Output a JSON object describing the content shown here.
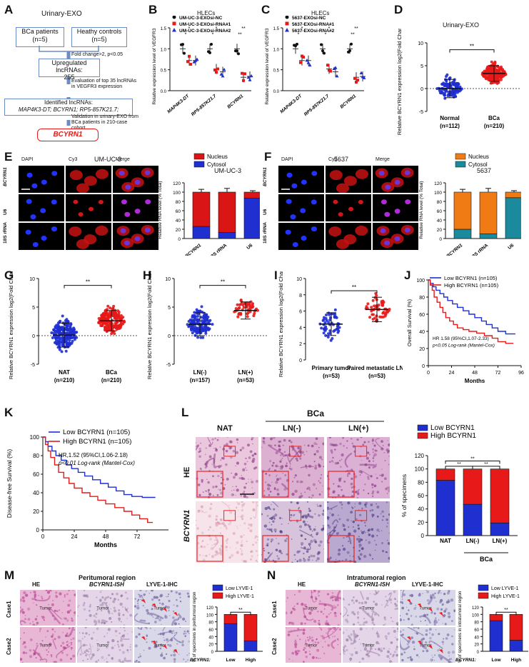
{
  "colors": {
    "blue": "#1f2fd0",
    "red": "#e81919",
    "teal": "#1b8a9c",
    "orange": "#f07a14",
    "nuc_red": "#d91515"
  },
  "panels": {
    "A": {
      "letter": "A",
      "title": "Urinary-EXO",
      "boxes": [
        "BCa patients (n=5)",
        "Heathy controls (n=5)"
      ],
      "step1": "Fold change>2, p<0.05",
      "step2a": "Upregulated lncRNAs:",
      "step2b": "255",
      "step3": "Evaluation of top 35 lncRNAs in VEGFR3 expression",
      "step4a": "Identified lncRNAs:",
      "step4b": "MAP4K3-DT; BCYRN1; RP5-857K21.7;",
      "step5": "Validation in urinary-EXO from BCa patients in 210-case cohort",
      "final": "BCYRN1"
    },
    "B": {
      "letter": "B",
      "title": "HLECs",
      "legend": [
        "UM-UC-3-EXOsi-NC",
        "UM-UC-3-EXOsi-RNA#1",
        "UM-UC-3-EXOsi-RNA#2"
      ],
      "ylabel": "Relative expression level of VEGFR3",
      "genes": [
        "MAP4K3-DT",
        "RP5-857K21.7",
        "BCYRN1"
      ]
    },
    "C": {
      "letter": "C",
      "title": "HLECs",
      "legend": [
        "5637-EXOsi-NC",
        "5637-EXOsi-RNA#1",
        "5637-EXOsi-RNA#2"
      ],
      "ylabel": "Relative expression level of VEGFR3",
      "genes": [
        "MAP4K3-DT",
        "RP5-857K21.7",
        "BCYRN1"
      ]
    },
    "D": {
      "letter": "D",
      "title": "Urinary-EXO",
      "ylabel": "Relative BCYRN1 expression log2(Fold Change)",
      "groups": [
        "Normal",
        "BCa"
      ],
      "ns": [
        "(n=112)",
        "(n=210)"
      ],
      "sig": "**"
    },
    "E": {
      "letter": "E",
      "title": "UM-UC-3",
      "micro_headers": [
        "DAPI",
        "Cy3",
        "Merge"
      ],
      "rows": [
        "BCYRN1",
        "U6",
        "18S rRNA"
      ],
      "chart_title": "UM-UC-3",
      "legend": [
        "Nucleus",
        "Cytosol"
      ],
      "ylabel": "Relative RNA level (% Total)",
      "categories": [
        "BCYRN1",
        "18S rRNA",
        "U6"
      ]
    },
    "F": {
      "letter": "F",
      "title": "5637",
      "micro_headers": [
        "DAPI",
        "Cy3",
        "Merge"
      ],
      "rows": [
        "BCYRN1",
        "U6",
        "18S rRNA"
      ],
      "chart_title": "5637",
      "legend": [
        "Nucleus",
        "Cytosol"
      ],
      "ylabel": "Relative RNA level (% Total)",
      "categories": [
        "BCYRN1",
        "18S rRNA",
        "U6"
      ]
    },
    "G": {
      "letter": "G",
      "ylabel": "Relative BCYRN1 expression log2(Fold Change)",
      "groups": [
        "NAT",
        "BCa"
      ],
      "ns": [
        "(n=210)",
        "(n=210)"
      ],
      "sig": "**"
    },
    "H": {
      "letter": "H",
      "ylabel": "Relative BCYRN1 expression log2(Fold Change)",
      "groups": [
        "LN(-)",
        "LN(+)"
      ],
      "ns": [
        "(n=157)",
        "(n=53)"
      ],
      "sig": "**"
    },
    "I": {
      "letter": "I",
      "ylabel": "Relative BCYRN1 expression log2(Fold Change)",
      "groups": [
        "Primary tumor",
        "Paired metastatic LNs"
      ],
      "ns": [
        "(n=53)",
        "(n=53)"
      ],
      "sig": "**"
    },
    "J": {
      "letter": "J",
      "ylabel": "Overall Survival (%)",
      "xlabel": "Months",
      "legend": [
        "Low BCYRN1 (n=105)",
        "High BCYRN1 (n=105)"
      ],
      "stat1": "HR 1.58 (95%CI,1.07-2.33)",
      "stat2": "p<0.05 Log-rank (Mantel-Cox)"
    },
    "K": {
      "letter": "K",
      "ylabel": "Disease-free Survival (%)",
      "xlabel": "Months",
      "legend": [
        "Low BCYRN1 (n=105)",
        "High BCYRN1 (n=105)"
      ],
      "stat1": "HR,1.52 (95%CI,1.06-2.18)",
      "stat2": "p<0.01 Log-rank (Mantel-Cox)"
    },
    "L": {
      "letter": "L",
      "bca": "BCa",
      "cols": [
        "NAT",
        "LN(-)",
        "LN(+)"
      ],
      "rows": [
        "HE",
        "BCYRN1"
      ],
      "legend": [
        "Low BCYRN1",
        "High BCYRN1"
      ],
      "ylabel": "% of specimens",
      "categories": [
        "NAT",
        "LN(-)",
        "LN(+)"
      ],
      "group": "BCa",
      "sig": "**"
    },
    "M": {
      "letter": "M",
      "title": "Peritumoral region",
      "cols": [
        "HE",
        "BCYRN1-ISH",
        "LYVE-1-IHC"
      ],
      "rows": [
        "Case1",
        "Case2"
      ],
      "tumor": "Tumor",
      "legend": [
        "Low LYVE-1",
        "High LYVE-1"
      ],
      "ylabel": "% of specimens in peritumoral region",
      "categories": [
        "Low",
        "High"
      ],
      "xprefix": "BCYRN1:",
      "sig": "**"
    },
    "N": {
      "letter": "N",
      "title": "Intratumoral region",
      "cols": [
        "HE",
        "BCYRN1-ISH",
        "LYVE-1-IHC"
      ],
      "rows": [
        "Case1",
        "Case2"
      ],
      "tumor": "Tumor",
      "legend": [
        "Low LYVE-1",
        "High LYVE-1"
      ],
      "ylabel": "% of specimens in intratumoral region",
      "categories": [
        "Low",
        "High"
      ],
      "xprefix": "BCYRN1:",
      "sig": "**"
    }
  },
  "chart_data": [
    {
      "id": "E",
      "type": "bar",
      "categories": [
        "BCYRN1",
        "18S rRNA",
        "U6"
      ],
      "series": [
        {
          "name": "Nucleus",
          "values": [
            26,
            13,
            87
          ]
        },
        {
          "name": "Cytosol",
          "values": [
            74,
            87,
            13
          ]
        }
      ],
      "ylim": [
        0,
        120
      ],
      "title": "UM-UC-3"
    },
    {
      "id": "F",
      "type": "bar",
      "categories": [
        "BCYRN1",
        "18S rRNA",
        "U6"
      ],
      "series": [
        {
          "name": "Nucleus",
          "values": [
            20,
            10,
            88
          ]
        },
        {
          "name": "Cytosol",
          "values": [
            80,
            90,
            12
          ]
        }
      ],
      "ylim": [
        0,
        120
      ],
      "title": "5637"
    },
    {
      "id": "L",
      "type": "bar",
      "categories": [
        "NAT",
        "LN(-)",
        "LN(+)"
      ],
      "series": [
        {
          "name": "Low BCYRN1",
          "values": [
            83,
            47,
            19
          ]
        },
        {
          "name": "High BCYRN1",
          "values": [
            17,
            53,
            81
          ]
        }
      ],
      "ylim": [
        0,
        120
      ]
    },
    {
      "id": "M",
      "type": "bar",
      "categories": [
        "Low",
        "High"
      ],
      "series": [
        {
          "name": "Low LYVE-1",
          "values": [
            75,
            28
          ]
        },
        {
          "name": "High LYVE-1",
          "values": [
            25,
            72
          ]
        }
      ],
      "ylim": [
        0,
        120
      ]
    },
    {
      "id": "N",
      "type": "bar",
      "categories": [
        "Low",
        "High"
      ],
      "series": [
        {
          "name": "Low LYVE-1",
          "values": [
            83,
            30
          ]
        },
        {
          "name": "High LYVE-1",
          "values": [
            17,
            70
          ]
        }
      ],
      "ylim": [
        0,
        120
      ]
    }
  ]
}
